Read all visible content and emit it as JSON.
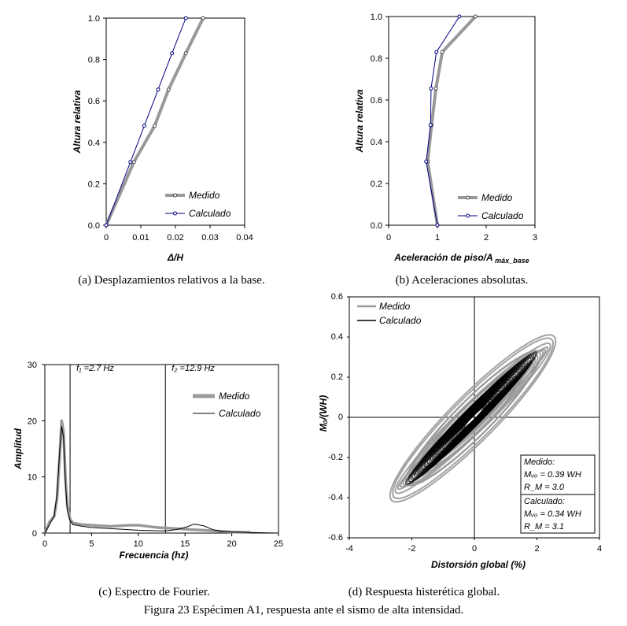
{
  "colors": {
    "medido": "#999999",
    "calculado": "#000080",
    "black": "#000000"
  },
  "figure_caption": "Figura 23 Espécimen A1, respuesta ante el sismo de alta intensidad.",
  "chart_data": [
    {
      "id": "a",
      "type": "line",
      "caption": "(a) Desplazamientos relativos a la base.",
      "xlabel": "Δ/H",
      "ylabel": "Altura relativa",
      "xlim": [
        0,
        0.04
      ],
      "ylim": [
        0,
        1.0
      ],
      "xticks": [
        "0",
        "0.01",
        "0.02",
        "0.03",
        "0.04"
      ],
      "yticks": [
        "0.0",
        "0.2",
        "0.4",
        "0.6",
        "0.8",
        "1.0"
      ],
      "legend": [
        "Medido",
        "Calculado"
      ],
      "series": [
        {
          "name": "Medido",
          "x": [
            0,
            0.008,
            0.014,
            0.018,
            0.023,
            0.028
          ],
          "y": [
            0,
            0.305,
            0.48,
            0.655,
            0.83,
            1.0
          ]
        },
        {
          "name": "Calculado",
          "x": [
            0,
            0.007,
            0.011,
            0.015,
            0.019,
            0.023
          ],
          "y": [
            0,
            0.305,
            0.48,
            0.655,
            0.83,
            1.0
          ]
        }
      ]
    },
    {
      "id": "b",
      "type": "line",
      "caption": "(b) Aceleraciones absolutas.",
      "xlabel": "Aceleración de piso/A",
      "xlabel_sub": "máx_base",
      "ylabel": "Altura relativa",
      "xlim": [
        0,
        3
      ],
      "ylim": [
        0,
        1.0
      ],
      "xticks": [
        "0",
        "1",
        "2",
        "3"
      ],
      "yticks": [
        "0.0",
        "0.2",
        "0.4",
        "0.6",
        "0.8",
        "1.0"
      ],
      "legend": [
        "Medido",
        "Calculado"
      ],
      "series": [
        {
          "name": "Medido",
          "x": [
            1.0,
            0.8,
            0.88,
            0.97,
            1.1,
            1.78
          ],
          "y": [
            0,
            0.305,
            0.48,
            0.655,
            0.83,
            1.0
          ]
        },
        {
          "name": "Calculado",
          "x": [
            1.0,
            0.77,
            0.86,
            0.87,
            0.98,
            1.45
          ],
          "y": [
            0,
            0.305,
            0.48,
            0.655,
            0.83,
            1.0
          ]
        }
      ]
    },
    {
      "id": "c",
      "type": "line",
      "caption": "(c) Espectro de Fourier.",
      "xlabel": "Frecuencia (hz)",
      "ylabel": "Amplitud",
      "xlim": [
        0,
        25
      ],
      "ylim": [
        0,
        30
      ],
      "xticks": [
        "0",
        "5",
        "10",
        "15",
        "20",
        "25"
      ],
      "yticks": [
        "0",
        "10",
        "20",
        "30"
      ],
      "legend": [
        "Medido",
        "Calculado"
      ],
      "annotations": [
        {
          "text": "f₁ =2.7 Hz",
          "x": 2.7
        },
        {
          "text": "f₂ =12.9 Hz",
          "x": 12.9
        }
      ],
      "series": [
        {
          "name": "Medido",
          "x": [
            0,
            0.5,
            1.0,
            1.3,
            1.6,
            1.8,
            2.0,
            2.2,
            2.4,
            2.7,
            3.0,
            4,
            5,
            6,
            7,
            8,
            9,
            10,
            11,
            12,
            13,
            15,
            17,
            19,
            20,
            22
          ],
          "y": [
            0,
            2,
            3,
            6,
            14,
            20,
            18,
            10,
            5,
            2.5,
            1.8,
            1.5,
            1.4,
            1.3,
            1.2,
            1.3,
            1.4,
            1.4,
            1.2,
            1.0,
            0.9,
            0.7,
            0.5,
            0.3,
            0.2,
            0.1
          ]
        },
        {
          "name": "Calculado",
          "x": [
            0,
            0.5,
            1.0,
            1.3,
            1.6,
            1.8,
            2.0,
            2.2,
            2.4,
            2.7,
            3.0,
            4,
            5,
            6,
            8,
            10,
            12,
            13,
            14,
            15,
            16,
            17,
            18,
            19,
            20,
            22,
            25
          ],
          "y": [
            0,
            1.5,
            3,
            7,
            15,
            19,
            17,
            9,
            4,
            2.2,
            1.5,
            1.2,
            1.0,
            0.9,
            0.7,
            0.5,
            0.4,
            0.4,
            0.6,
            1.0,
            1.6,
            1.3,
            0.6,
            0.3,
            0.2,
            0.1,
            0
          ]
        }
      ]
    },
    {
      "id": "d",
      "type": "line",
      "caption": "(d) Respuesta histerética global.",
      "xlabel": "Distorsión global (%)",
      "ylabel": "Mₒ/(WH)",
      "xlim": [
        -4,
        4
      ],
      "ylim": [
        -0.6,
        0.6
      ],
      "xticks": [
        "-4",
        "-2",
        "0",
        "2",
        "4"
      ],
      "yticks": [
        "0.6",
        "0.4",
        "0.2",
        "0",
        "-0.2",
        "-0.4",
        "-0.6"
      ],
      "legend": [
        "Medido",
        "Calculado"
      ],
      "info_box": {
        "medido_title": "Medido:",
        "medido_m": "Mᵥₒ = 0.39 WH",
        "medido_r": "R_M = 3.0",
        "calculado_title": "Calculado:",
        "calculado_m": "Mᵥₒ = 0.34 WH",
        "calculado_r": "R_M = 3.1"
      },
      "series": [
        {
          "name": "Medido",
          "envelope": {
            "xmax": 2.6,
            "ymax": 0.38,
            "xmin": -2.7,
            "ymin": -0.39
          }
        },
        {
          "name": "Calculado",
          "envelope": {
            "xmax": 2.0,
            "ymax": 0.32,
            "xmin": -2.2,
            "ymin": -0.33
          }
        }
      ]
    }
  ]
}
